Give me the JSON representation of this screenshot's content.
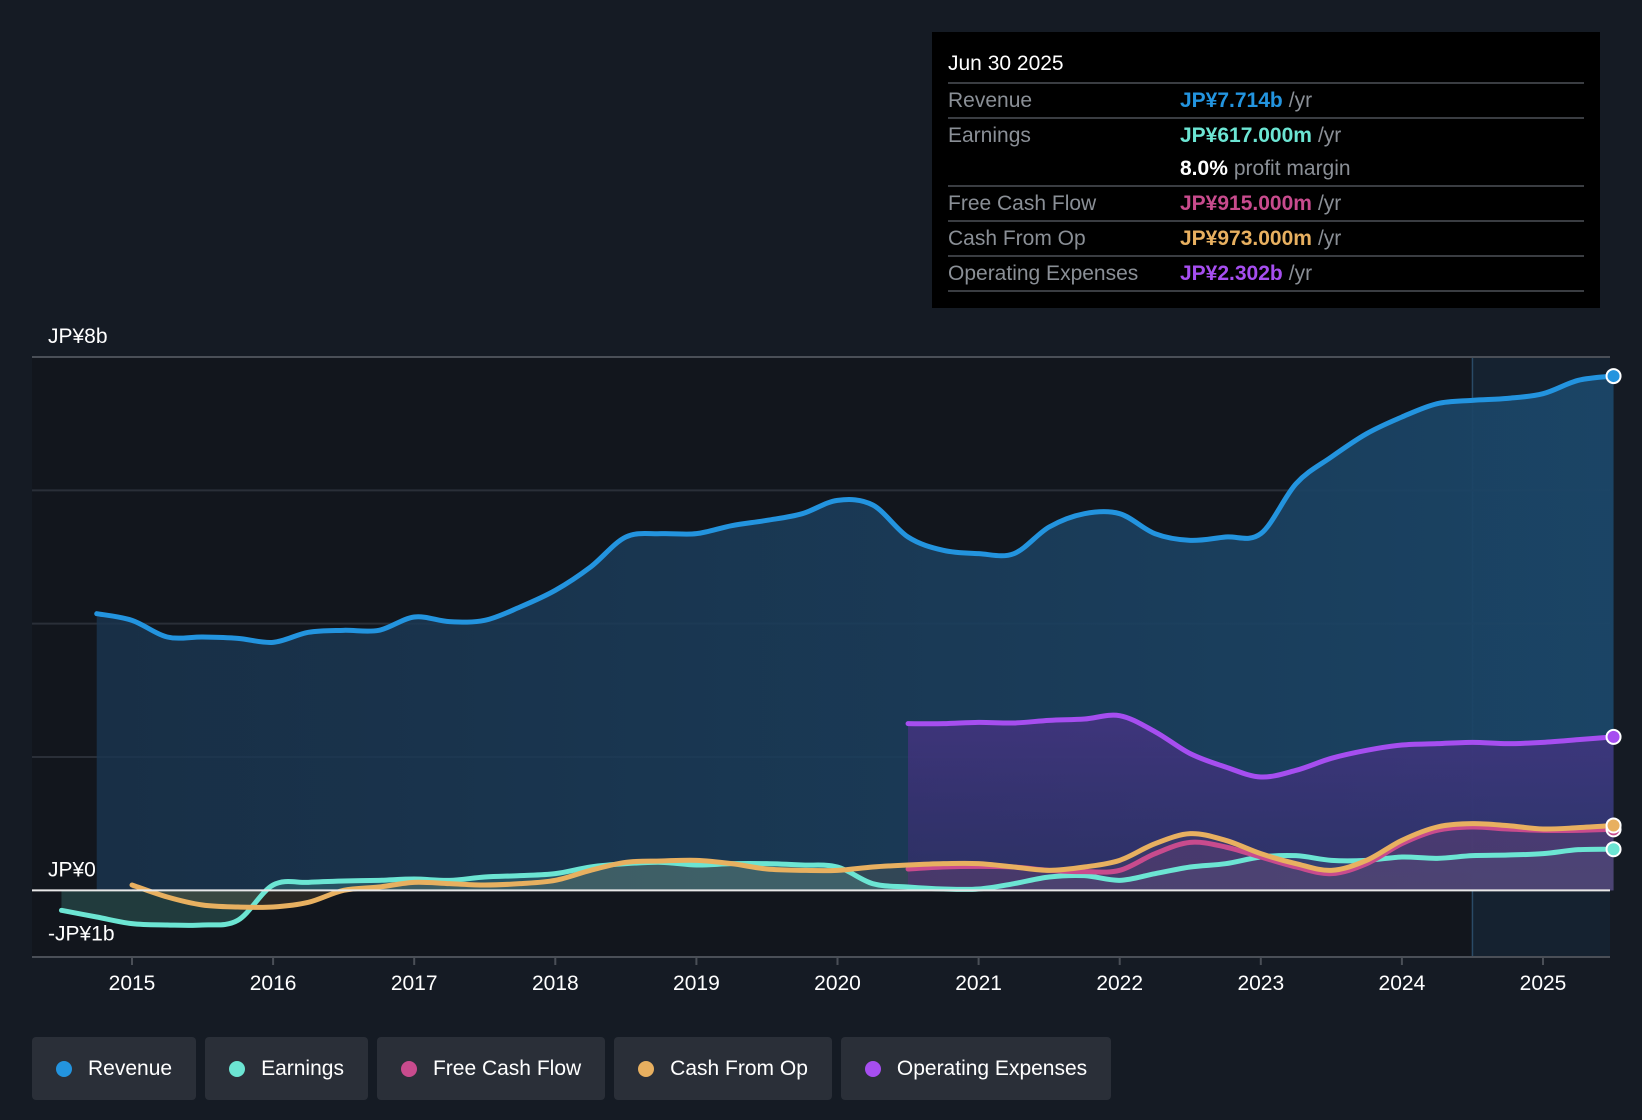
{
  "tooltip": {
    "date": "Jun 30 2025",
    "rows": [
      {
        "label": "Revenue",
        "value": "JP¥7.714b",
        "unit": "/yr",
        "color": "#2394df"
      },
      {
        "label": "Earnings",
        "value": "JP¥617.000m",
        "unit": "/yr",
        "color": "#6ce5d3"
      },
      {
        "label": "",
        "value": "8.0%",
        "unit": "profit margin",
        "color": "#ffffff"
      },
      {
        "label": "Free Cash Flow",
        "value": "JP¥915.000m",
        "unit": "/yr",
        "color": "#c84b8d"
      },
      {
        "label": "Cash From Op",
        "value": "JP¥973.000m",
        "unit": "/yr",
        "color": "#e8b060"
      },
      {
        "label": "Operating Expenses",
        "value": "JP¥2.302b",
        "unit": "/yr",
        "color": "#a64ef0"
      }
    ]
  },
  "legend": [
    {
      "label": "Revenue",
      "color": "#2394df"
    },
    {
      "label": "Earnings",
      "color": "#6ce5d3"
    },
    {
      "label": "Free Cash Flow",
      "color": "#c84b8d"
    },
    {
      "label": "Cash From Op",
      "color": "#e8b060"
    },
    {
      "label": "Operating Expenses",
      "color": "#a64ef0"
    }
  ],
  "chart_data": {
    "type": "area",
    "title": "",
    "xlabel": "",
    "ylabel": "",
    "unit": "JP¥ billions",
    "xlim": [
      2014.5,
      2025.5
    ],
    "ylim": [
      -1,
      8
    ],
    "y_tick_labels": [
      {
        "value": 8,
        "label": "JP¥8b"
      },
      {
        "value": 0,
        "label": "JP¥0"
      },
      {
        "value": -1,
        "label": "-JP¥1b"
      }
    ],
    "gridlines": [
      8,
      6,
      4,
      2,
      0
    ],
    "x_ticks": [
      2015,
      2016,
      2017,
      2018,
      2019,
      2020,
      2021,
      2022,
      2023,
      2024,
      2025
    ],
    "highlight_from": 2024.5,
    "grid": true,
    "legend_position": "bottom",
    "series": [
      {
        "name": "Revenue",
        "color": "#2394df",
        "x": [
          2014.75,
          2015.0,
          2015.25,
          2015.5,
          2015.75,
          2016.0,
          2016.25,
          2016.5,
          2016.75,
          2017.0,
          2017.25,
          2017.5,
          2017.75,
          2018.0,
          2018.25,
          2018.5,
          2018.75,
          2019.0,
          2019.25,
          2019.5,
          2019.75,
          2020.0,
          2020.25,
          2020.5,
          2020.75,
          2021.0,
          2021.25,
          2021.5,
          2021.75,
          2022.0,
          2022.25,
          2022.5,
          2022.75,
          2023.0,
          2023.25,
          2023.5,
          2023.75,
          2024.0,
          2024.25,
          2024.5,
          2024.75,
          2025.0,
          2025.25,
          2025.5
        ],
        "y": [
          4.15,
          4.05,
          3.8,
          3.8,
          3.78,
          3.72,
          3.87,
          3.9,
          3.9,
          4.1,
          4.03,
          4.05,
          4.25,
          4.5,
          4.85,
          5.3,
          5.35,
          5.35,
          5.47,
          5.55,
          5.65,
          5.85,
          5.78,
          5.3,
          5.1,
          5.05,
          5.05,
          5.45,
          5.65,
          5.65,
          5.35,
          5.25,
          5.3,
          5.35,
          6.1,
          6.5,
          6.85,
          7.1,
          7.3,
          7.35,
          7.38,
          7.45,
          7.65,
          7.714
        ]
      },
      {
        "name": "Earnings",
        "color": "#6ce5d3",
        "x": [
          2014.5,
          2014.75,
          2015.0,
          2015.25,
          2015.5,
          2015.75,
          2016.0,
          2016.25,
          2016.5,
          2016.75,
          2017.0,
          2017.25,
          2017.5,
          2017.75,
          2018.0,
          2018.25,
          2018.5,
          2018.75,
          2019.0,
          2019.25,
          2019.5,
          2019.75,
          2020.0,
          2020.25,
          2020.5,
          2020.75,
          2021.0,
          2021.25,
          2021.5,
          2021.75,
          2022.0,
          2022.25,
          2022.5,
          2022.75,
          2023.0,
          2023.25,
          2023.5,
          2023.75,
          2024.0,
          2024.25,
          2024.5,
          2024.75,
          2025.0,
          2025.25,
          2025.5
        ],
        "y": [
          -0.3,
          -0.4,
          -0.5,
          -0.52,
          -0.52,
          -0.45,
          0.08,
          0.12,
          0.14,
          0.15,
          0.17,
          0.15,
          0.2,
          0.22,
          0.25,
          0.35,
          0.4,
          0.42,
          0.38,
          0.4,
          0.4,
          0.38,
          0.35,
          0.1,
          0.05,
          0.02,
          0.02,
          0.1,
          0.2,
          0.22,
          0.15,
          0.25,
          0.35,
          0.4,
          0.5,
          0.52,
          0.45,
          0.45,
          0.5,
          0.48,
          0.52,
          0.53,
          0.55,
          0.61,
          0.617
        ]
      },
      {
        "name": "Free Cash Flow",
        "color": "#c84b8d",
        "x": [
          2020.5,
          2020.75,
          2021.0,
          2021.25,
          2021.5,
          2021.75,
          2022.0,
          2022.25,
          2022.5,
          2022.75,
          2023.0,
          2023.25,
          2023.5,
          2023.75,
          2024.0,
          2024.25,
          2024.5,
          2024.75,
          2025.0,
          2025.25,
          2025.5
        ],
        "y": [
          0.32,
          0.35,
          0.36,
          0.35,
          0.3,
          0.28,
          0.3,
          0.55,
          0.72,
          0.65,
          0.5,
          0.35,
          0.25,
          0.4,
          0.7,
          0.9,
          0.95,
          0.92,
          0.9,
          0.9,
          0.915
        ]
      },
      {
        "name": "Cash From Op",
        "color": "#e8b060",
        "x": [
          2015.0,
          2015.25,
          2015.5,
          2015.75,
          2016.0,
          2016.25,
          2016.5,
          2016.75,
          2017.0,
          2017.25,
          2017.5,
          2017.75,
          2018.0,
          2018.25,
          2018.5,
          2018.75,
          2019.0,
          2019.25,
          2019.5,
          2019.75,
          2020.0,
          2020.25,
          2020.5,
          2020.75,
          2021.0,
          2021.25,
          2021.5,
          2021.75,
          2022.0,
          2022.25,
          2022.5,
          2022.75,
          2023.0,
          2023.25,
          2023.5,
          2023.75,
          2024.0,
          2024.25,
          2024.5,
          2024.75,
          2025.0,
          2025.25,
          2025.5
        ],
        "y": [
          0.08,
          -0.1,
          -0.22,
          -0.25,
          -0.25,
          -0.18,
          0.0,
          0.05,
          0.12,
          0.1,
          0.08,
          0.1,
          0.15,
          0.3,
          0.42,
          0.44,
          0.45,
          0.4,
          0.32,
          0.3,
          0.3,
          0.35,
          0.38,
          0.4,
          0.4,
          0.35,
          0.3,
          0.35,
          0.45,
          0.7,
          0.85,
          0.75,
          0.55,
          0.4,
          0.3,
          0.45,
          0.75,
          0.95,
          1.0,
          0.97,
          0.92,
          0.94,
          0.973
        ]
      },
      {
        "name": "Operating Expenses",
        "color": "#a64ef0",
        "x": [
          2020.5,
          2020.75,
          2021.0,
          2021.25,
          2021.5,
          2021.75,
          2022.0,
          2022.25,
          2022.5,
          2022.75,
          2023.0,
          2023.25,
          2023.5,
          2023.75,
          2024.0,
          2024.25,
          2024.5,
          2024.75,
          2025.0,
          2025.25,
          2025.5
        ],
        "y": [
          2.5,
          2.5,
          2.52,
          2.51,
          2.55,
          2.57,
          2.62,
          2.38,
          2.05,
          1.85,
          1.7,
          1.8,
          1.98,
          2.1,
          2.18,
          2.2,
          2.22,
          2.2,
          2.22,
          2.26,
          2.302
        ]
      }
    ]
  }
}
